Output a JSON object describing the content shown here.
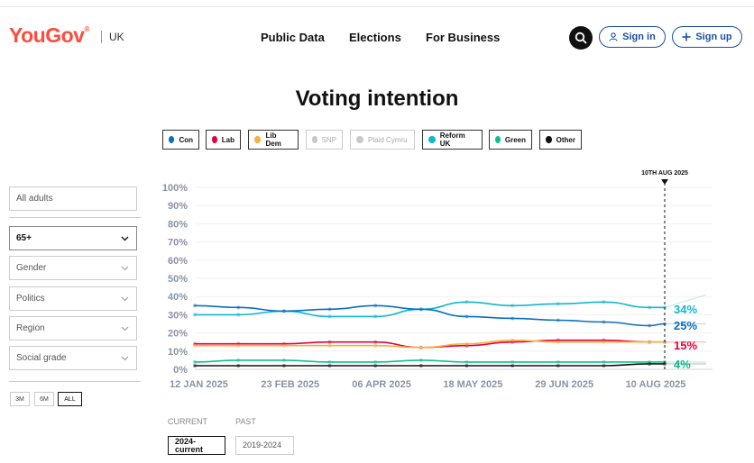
{
  "header": {
    "logo": "YouGov",
    "logo_mark": "®",
    "region": "UK",
    "nav": [
      "Public Data",
      "Elections",
      "For Business"
    ],
    "sign_in": "Sign in",
    "sign_up": "Sign up"
  },
  "page_title": "Voting intention",
  "legend": [
    {
      "label": "Con",
      "color": "#0a6ec2",
      "active": true
    },
    {
      "label": "Lab",
      "color": "#e4003b",
      "active": true
    },
    {
      "label": "Lib Dem",
      "color": "#f6b13d",
      "active": true
    },
    {
      "label": "SNP",
      "color": "#c8c8c8",
      "active": false
    },
    {
      "label": "Plaid Cymru",
      "color": "#c8c8c8",
      "active": false
    },
    {
      "label": "Reform UK",
      "color": "#12b6cf",
      "active": true
    },
    {
      "label": "Green",
      "color": "#0fbf8f",
      "active": true
    },
    {
      "label": "Other",
      "color": "#111111",
      "active": true
    }
  ],
  "filters": {
    "population": "All adults",
    "age": "65+",
    "gender": "Gender",
    "politics": "Politics",
    "region": "Region",
    "social_grade": "Social grade"
  },
  "ranges": [
    "3M",
    "6M",
    "ALL"
  ],
  "selected_range": "ALL",
  "periods": {
    "current_label": "CURRENT",
    "past_label": "PAST",
    "current": "2024-current",
    "past": "2019-2024"
  },
  "chart_data": {
    "type": "line",
    "marker_label": "10TH AUG 2025",
    "marker_date": "2025-08-10",
    "x_ticks": [
      "12 JAN 2025",
      "23 FEB 2025",
      "06 APR 2025",
      "18 MAY 2025",
      "29 JUN 2025",
      "10 AUG 2025"
    ],
    "x_tick_dates": [
      "2025-01-12",
      "2025-02-23",
      "2025-04-06",
      "2025-05-18",
      "2025-06-29",
      "2025-08-10"
    ],
    "y_ticks": [
      "0%",
      "10%",
      "20%",
      "30%",
      "40%",
      "50%",
      "60%",
      "70%",
      "80%",
      "90%",
      "100%"
    ],
    "ylim": [
      0,
      100
    ],
    "xlim": [
      "2025-01-06",
      "2025-08-10"
    ],
    "x": [
      "2025-01-06",
      "2025-01-26",
      "2025-02-16",
      "2025-03-09",
      "2025-03-30",
      "2025-04-20",
      "2025-05-11",
      "2025-06-01",
      "2025-06-22",
      "2025-07-13",
      "2025-08-03",
      "2025-08-10"
    ],
    "series": [
      {
        "name": "Reform UK",
        "color": "#12b6cf",
        "values": [
          30,
          30,
          32,
          29,
          29,
          33,
          37,
          35,
          36,
          37,
          34,
          34
        ],
        "end_label": "34%"
      },
      {
        "name": "Con",
        "color": "#0a6ec2",
        "values": [
          35,
          34,
          32,
          33,
          35,
          33,
          29,
          28,
          27,
          26,
          24,
          25
        ],
        "end_label": "25%"
      },
      {
        "name": "Lab",
        "color": "#e4003b",
        "values": [
          14,
          14,
          14,
          15,
          15,
          12,
          13,
          15,
          16,
          16,
          15,
          15
        ],
        "end_label": "15%"
      },
      {
        "name": "Lib Dem",
        "color": "#f6b13d",
        "values": [
          13,
          13,
          13,
          13,
          13,
          12,
          14,
          16,
          15,
          15,
          15,
          15
        ],
        "end_label": ""
      },
      {
        "name": "Green",
        "color": "#0fbf8f",
        "values": [
          4,
          5,
          5,
          4,
          4,
          5,
          4,
          4,
          4,
          4,
          4,
          4
        ],
        "end_label": "4%"
      },
      {
        "name": "Other",
        "color": "#111111",
        "values": [
          2,
          2,
          2,
          2,
          2,
          2,
          2,
          2,
          2,
          2,
          3,
          3
        ],
        "end_label": ""
      }
    ]
  }
}
